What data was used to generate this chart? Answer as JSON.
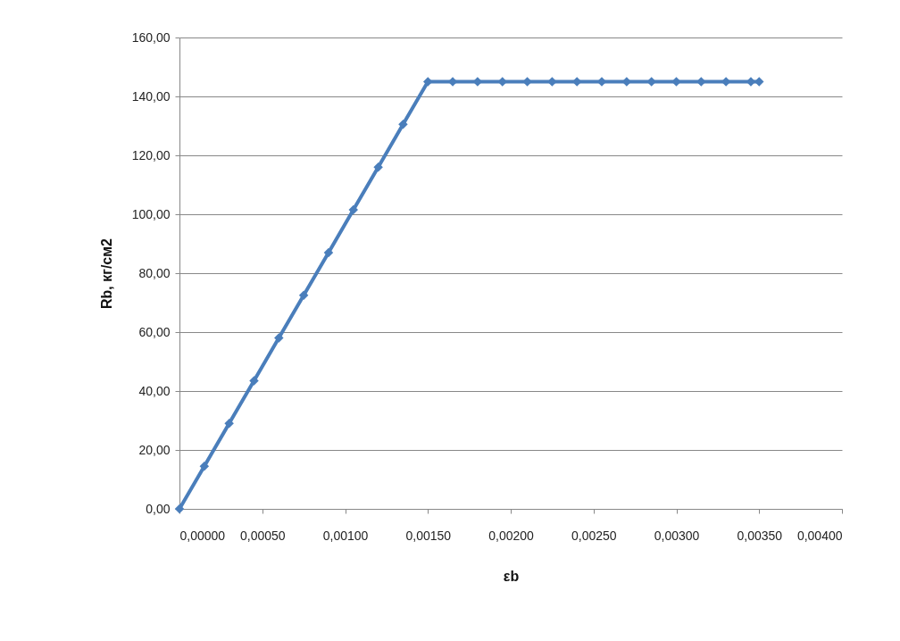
{
  "chart_data": {
    "type": "line",
    "xlabel": "εb",
    "ylabel": "Rb, кг/см2",
    "x": [
      0,
      0.00015,
      0.0003,
      0.00045,
      0.0006,
      0.00075,
      0.0009,
      0.00105,
      0.0012,
      0.00135,
      0.0015,
      0.00165,
      0.0018,
      0.00195,
      0.0021,
      0.00225,
      0.0024,
      0.00255,
      0.0027,
      0.00285,
      0.003,
      0.00315,
      0.0033,
      0.00345,
      0.0035
    ],
    "series": [
      {
        "color": "#4a7ebb",
        "values": [
          0,
          14.5,
          29,
          43.5,
          58,
          72.5,
          87,
          101.5,
          116,
          130.5,
          145,
          145,
          145,
          145,
          145,
          145,
          145,
          145,
          145,
          145,
          145,
          145,
          145,
          145,
          145
        ]
      }
    ],
    "xlim": [
      0,
      0.004
    ],
    "xticks": [
      {
        "value": 0,
        "label": "0,00000"
      },
      {
        "value": 0.0005,
        "label": "0,00050"
      },
      {
        "value": 0.001,
        "label": "0,00100"
      },
      {
        "value": 0.0015,
        "label": "0,00150"
      },
      {
        "value": 0.002,
        "label": "0,00200"
      },
      {
        "value": 0.0025,
        "label": "0,00250"
      },
      {
        "value": 0.003,
        "label": "0,00300"
      },
      {
        "value": 0.0035,
        "label": "0,00350"
      },
      {
        "value": 0.004,
        "label": "0,00400"
      }
    ],
    "ylim": [
      0,
      160
    ],
    "yticks": [
      {
        "value": 0,
        "label": "0,00"
      },
      {
        "value": 20,
        "label": "20,00"
      },
      {
        "value": 40,
        "label": "40,00"
      },
      {
        "value": 60,
        "label": "60,00"
      },
      {
        "value": 80,
        "label": "80,00"
      },
      {
        "value": 100,
        "label": "100,00"
      },
      {
        "value": 120,
        "label": "120,00"
      },
      {
        "value": 140,
        "label": "140,00"
      },
      {
        "value": 160,
        "label": "160,00"
      }
    ],
    "grid": "y",
    "marker": "diamond",
    "line_style": "solid",
    "legend": false
  }
}
